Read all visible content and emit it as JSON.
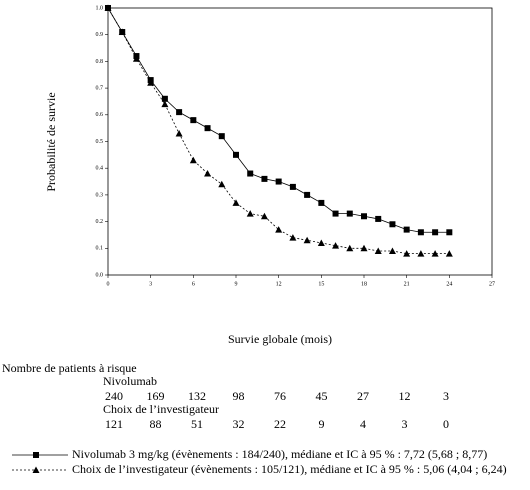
{
  "chart_data": {
    "type": "line",
    "ylabel": "Probabilité de survie",
    "xlabel": "Survie globale (mois)",
    "x": [
      0,
      1,
      2,
      3,
      4,
      5,
      6,
      7,
      8,
      9,
      10,
      11,
      12,
      13,
      14,
      15,
      16,
      17,
      18,
      19,
      20,
      21,
      22,
      23,
      24
    ],
    "series": [
      {
        "name": "Nivolumab 3 mg/kg (évènements : 184/240), médiane et IC à 95 % : 7,72 (5,68 ; 8,77)",
        "color": "#000000",
        "marker": "square",
        "dash": "solid",
        "values": [
          1.0,
          0.91,
          0.82,
          0.73,
          0.66,
          0.61,
          0.58,
          0.55,
          0.52,
          0.45,
          0.38,
          0.36,
          0.35,
          0.33,
          0.3,
          0.27,
          0.23,
          0.23,
          0.22,
          0.21,
          0.19,
          0.17,
          0.16,
          0.16,
          0.16
        ]
      },
      {
        "name": "Choix de l’investigateur (évènements : 105/121), médiane et IC à 95 % : 5,06 (4,04 ; 6,24)",
        "color": "#000000",
        "marker": "triangle",
        "dash": "dotted",
        "values": [
          1.0,
          0.91,
          0.81,
          0.72,
          0.64,
          0.53,
          0.43,
          0.38,
          0.34,
          0.27,
          0.23,
          0.22,
          0.17,
          0.14,
          0.13,
          0.12,
          0.11,
          0.1,
          0.1,
          0.09,
          0.09,
          0.08,
          0.08,
          0.08,
          0.08
        ]
      }
    ],
    "xlim": [
      0,
      27
    ],
    "xticks": [
      0,
      3,
      6,
      9,
      12,
      15,
      18,
      21,
      24,
      27
    ],
    "ylim": [
      0,
      1
    ],
    "yticks": [
      {
        "value": 0,
        "label": "0.0"
      },
      0.1,
      0.2,
      0.3,
      0.4,
      0.5,
      0.6,
      0.7,
      0.8,
      0.9,
      {
        "value": 1,
        "label": "1.0"
      }
    ],
    "risk_table": {
      "title": "Nombre de patients à risque",
      "rows": [
        {
          "name": "Nivolumab",
          "values": [
            240,
            169,
            132,
            98,
            76,
            45,
            27,
            12,
            3
          ]
        },
        {
          "name": "Choix de l’investigateur",
          "values": [
            121,
            88,
            51,
            32,
            22,
            9,
            4,
            3,
            0
          ]
        }
      ]
    }
  }
}
